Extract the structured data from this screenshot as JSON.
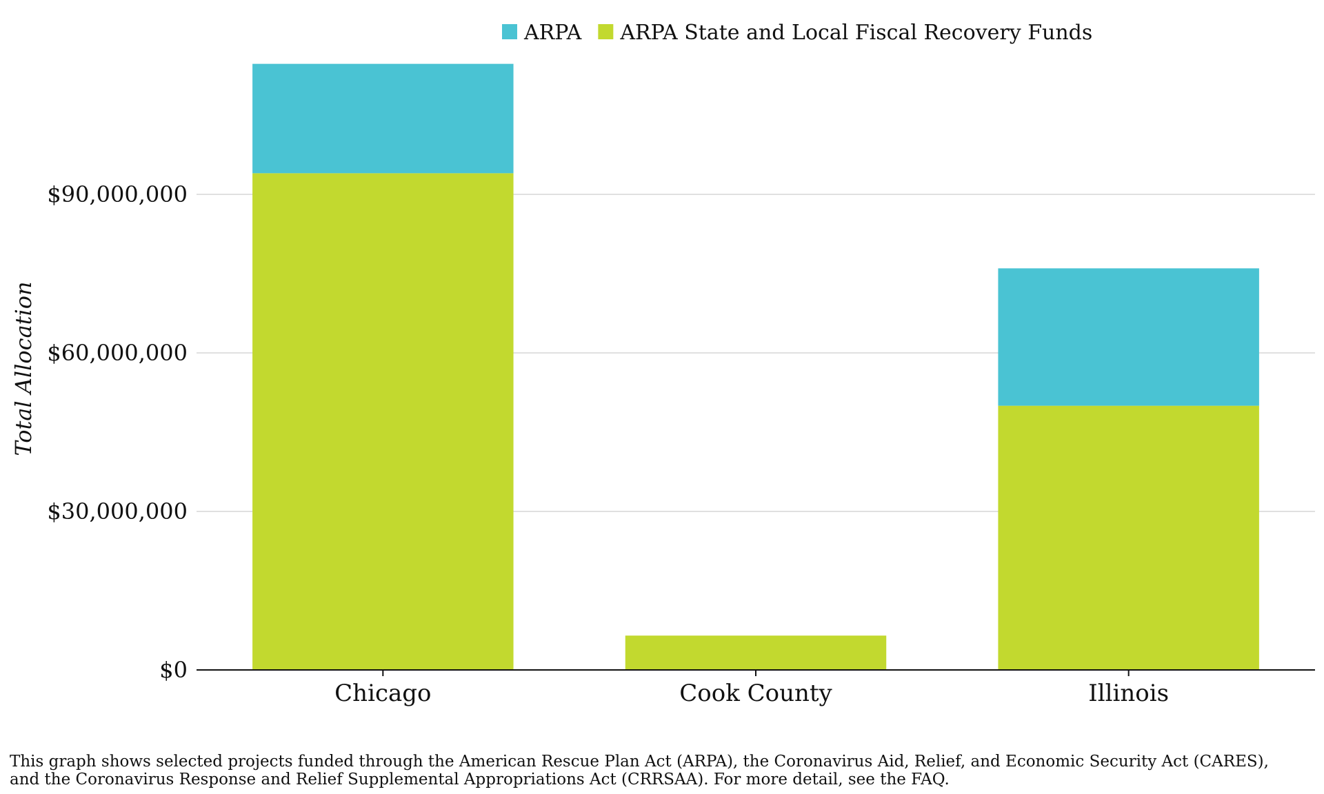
{
  "chart_data": {
    "type": "bar",
    "stacked": true,
    "categories": [
      "Chicago",
      "Cook County",
      "Illinois"
    ],
    "series": [
      {
        "name": "ARPA State and Local Fiscal Recovery Funds",
        "color": "#c2d92f",
        "values": [
          94000000,
          6500000,
          50000000
        ]
      },
      {
        "name": "ARPA",
        "color": "#4ac3d3",
        "values": [
          20700000,
          0,
          26000000
        ]
      }
    ],
    "legend_order": [
      "ARPA",
      "ARPA State and Local Fiscal Recovery Funds"
    ],
    "legend_position": "top-center",
    "ylabel": "Total Allocation",
    "xlabel": "",
    "title": "",
    "ylim": [
      0,
      115000000
    ],
    "yticks": [
      0,
      30000000,
      60000000,
      90000000
    ],
    "ytick_labels": [
      "$0",
      "$30,000,000",
      "$60,000,000",
      "$90,000,000"
    ],
    "grid": "horizontal"
  },
  "caption": {
    "line1": "This graph shows selected projects funded through the American Rescue Plan Act (ARPA), the Coronavirus Aid, Relief, and Economic Security Act (CARES),",
    "line2": "and the Coronavirus Response and Relief Supplemental Appropriations Act (CRRSAA). For more detail, see the FAQ."
  }
}
